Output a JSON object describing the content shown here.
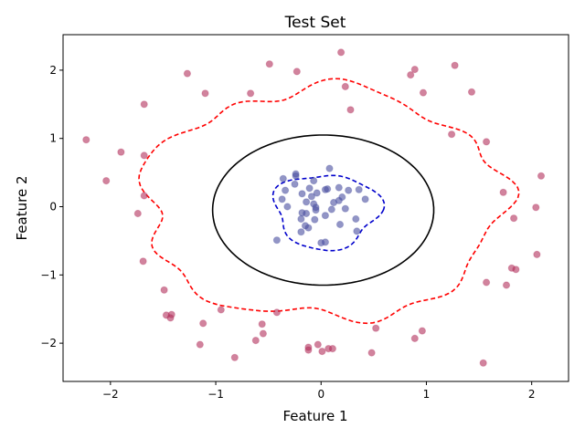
{
  "chart_data": {
    "type": "scatter",
    "title": "Test Set",
    "xlabel": "Feature 1",
    "ylabel": "Feature 2",
    "xlim": [
      -2.45,
      2.35
    ],
    "ylim": [
      -2.56,
      2.52
    ],
    "xticks": [
      -2,
      -1,
      0,
      1,
      2
    ],
    "yticks": [
      -2,
      -1,
      0,
      1,
      2
    ],
    "grid": false,
    "colors": {
      "outer_class": "#b3305c",
      "inner_class": "#4a4fa0",
      "boundary_true": "#000000",
      "boundary_a": "#ff0000",
      "boundary_b": "#0000cc"
    },
    "series": [
      {
        "class": "outer",
        "points": [
          [
            0.19,
            2.26
          ],
          [
            -0.49,
            2.09
          ],
          [
            1.27,
            2.07
          ],
          [
            0.89,
            2.01
          ],
          [
            -1.27,
            1.95
          ],
          [
            -0.23,
            1.98
          ],
          [
            0.85,
            1.93
          ],
          [
            0.23,
            1.76
          ],
          [
            0.97,
            1.67
          ],
          [
            1.43,
            1.68
          ],
          [
            -1.1,
            1.66
          ],
          [
            -0.67,
            1.66
          ],
          [
            -1.68,
            1.5
          ],
          [
            0.28,
            1.42
          ],
          [
            1.24,
            1.06
          ],
          [
            -2.23,
            0.98
          ],
          [
            1.57,
            0.95
          ],
          [
            -1.9,
            0.8
          ],
          [
            -1.68,
            0.75
          ],
          [
            2.09,
            0.45
          ],
          [
            -2.04,
            0.38
          ],
          [
            1.73,
            0.21
          ],
          [
            -1.68,
            0.16
          ],
          [
            2.04,
            -0.01
          ],
          [
            -1.74,
            -0.1
          ],
          [
            1.83,
            -0.17
          ],
          [
            2.05,
            -0.7
          ],
          [
            -1.69,
            -0.8
          ],
          [
            1.81,
            -0.9
          ],
          [
            1.85,
            -0.92
          ],
          [
            1.57,
            -1.11
          ],
          [
            1.76,
            -1.15
          ],
          [
            -1.49,
            -1.22
          ],
          [
            -0.42,
            -1.55
          ],
          [
            -0.95,
            -1.51
          ],
          [
            -1.47,
            -1.59
          ],
          [
            -1.42,
            -1.58
          ],
          [
            -1.43,
            -1.63
          ],
          [
            -1.12,
            -1.71
          ],
          [
            -0.56,
            -1.72
          ],
          [
            0.52,
            -1.78
          ],
          [
            0.96,
            -1.82
          ],
          [
            -0.55,
            -1.86
          ],
          [
            -0.62,
            -1.96
          ],
          [
            0.89,
            -1.93
          ],
          [
            -1.15,
            -2.02
          ],
          [
            -0.03,
            -2.02
          ],
          [
            -0.12,
            -2.06
          ],
          [
            0.07,
            -2.08
          ],
          [
            0.11,
            -2.08
          ],
          [
            -0.12,
            -2.1
          ],
          [
            0.01,
            -2.12
          ],
          [
            0.48,
            -2.14
          ],
          [
            -0.82,
            -2.21
          ],
          [
            1.54,
            -2.29
          ]
        ]
      },
      {
        "class": "inner",
        "points": [
          [
            0.08,
            0.56
          ],
          [
            -0.24,
            0.48
          ],
          [
            -0.24,
            0.45
          ],
          [
            -0.36,
            0.41
          ],
          [
            -0.07,
            0.38
          ],
          [
            -0.25,
            0.33
          ],
          [
            0.06,
            0.26
          ],
          [
            0.04,
            0.25
          ],
          [
            -0.11,
            0.27
          ],
          [
            0.17,
            0.28
          ],
          [
            -0.34,
            0.24
          ],
          [
            0.26,
            0.24
          ],
          [
            0.36,
            0.25
          ],
          [
            -0.18,
            0.19
          ],
          [
            -0.04,
            0.2
          ],
          [
            0.2,
            0.14
          ],
          [
            -0.09,
            0.15
          ],
          [
            0.42,
            0.11
          ],
          [
            -0.37,
            0.11
          ],
          [
            0.17,
            0.09
          ],
          [
            -0.14,
            0.07
          ],
          [
            0.12,
            0.06
          ],
          [
            -0.07,
            0.04
          ],
          [
            -0.32,
            0.0
          ],
          [
            -0.05,
            -0.01
          ],
          [
            0.23,
            -0.03
          ],
          [
            -0.05,
            -0.05
          ],
          [
            0.1,
            -0.04
          ],
          [
            -0.18,
            -0.09
          ],
          [
            -0.14,
            -0.1
          ],
          [
            0.04,
            -0.13
          ],
          [
            -0.19,
            -0.18
          ],
          [
            -0.06,
            -0.19
          ],
          [
            0.33,
            -0.18
          ],
          [
            -0.15,
            -0.28
          ],
          [
            -0.12,
            -0.31
          ],
          [
            0.18,
            -0.26
          ],
          [
            -0.19,
            -0.37
          ],
          [
            0.34,
            -0.36
          ],
          [
            -0.42,
            -0.49
          ],
          [
            0.04,
            -0.52
          ],
          [
            0.0,
            -0.53
          ]
        ]
      }
    ]
  }
}
